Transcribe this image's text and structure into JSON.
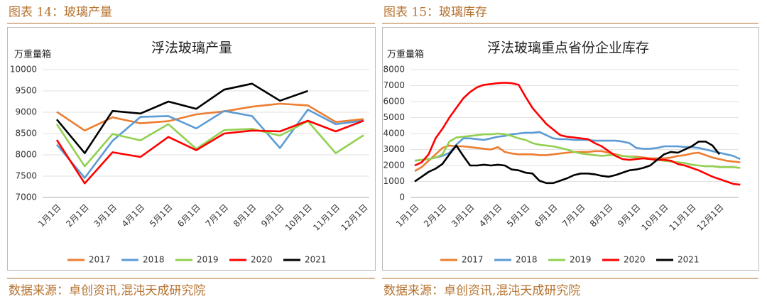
{
  "chart_data": [
    {
      "type": "line",
      "figure_label": "图表 14：玻璃产量",
      "title": "浮法玻璃产量",
      "y_label": "万重量箱",
      "source": "数据来源：卓创资讯,混沌天成研究院",
      "categories": [
        "1月1日",
        "2月1日",
        "3月1日",
        "4月1日",
        "5月1日",
        "6月1日",
        "7月1日",
        "8月1日",
        "9月1日",
        "10月1日",
        "11月1日",
        "12月1日"
      ],
      "series": [
        {
          "name": "2017",
          "color": "#ed7d31",
          "values": [
            9010,
            8570,
            8880,
            8740,
            8790,
            8950,
            9020,
            9130,
            9200,
            9160,
            8770,
            8840
          ]
        },
        {
          "name": "2018",
          "color": "#5b9bd5",
          "values": [
            8240,
            7460,
            8330,
            8890,
            8910,
            8620,
            9030,
            8910,
            8160,
            9060,
            8720,
            8800
          ]
        },
        {
          "name": "2019",
          "color": "#92d050",
          "values": [
            8720,
            7730,
            8490,
            8340,
            8720,
            8140,
            8580,
            8610,
            8450,
            8790,
            8040,
            8460
          ]
        },
        {
          "name": "2020",
          "color": "#ff0000",
          "values": [
            8350,
            7330,
            8060,
            7950,
            8420,
            8110,
            8500,
            8570,
            8550,
            8800,
            8550,
            8800
          ]
        },
        {
          "name": "2021",
          "color": "#000000",
          "values": [
            8830,
            8040,
            9030,
            8970,
            9250,
            9080,
            9530,
            9670,
            9270,
            9500,
            null,
            null
          ]
        }
      ],
      "ylim": [
        7000,
        10000
      ],
      "yticks": [
        7000,
        7500,
        8000,
        8500,
        9000,
        9500,
        10000
      ],
      "grid": true,
      "legend": "bottom"
    },
    {
      "type": "line",
      "figure_label": "图表 15：玻璃库存",
      "title": "浮法玻璃重点省份企业库存",
      "y_label": "万重量箱",
      "source": "数据来源：卓创资讯,混沌天成研究院",
      "categories": [
        "1月1日",
        null,
        null,
        null,
        "2月1日",
        null,
        null,
        null,
        "3月1日",
        null,
        null,
        null,
        "4月1日",
        null,
        null,
        null,
        "5月1日",
        null,
        null,
        null,
        "6月1日",
        null,
        null,
        null,
        "7月1日",
        null,
        null,
        null,
        "8月1日",
        null,
        null,
        null,
        "9月1日",
        null,
        null,
        null,
        "10月1日",
        null,
        null,
        null,
        "11月1日",
        null,
        null,
        null,
        "12月1日",
        null,
        null,
        null
      ],
      "series": [
        {
          "name": "2017",
          "color": "#ed7d31",
          "values": [
            1650,
            1900,
            2300,
            2700,
            3100,
            3250,
            3200,
            3200,
            3150,
            3100,
            3050,
            3000,
            3150,
            2850,
            2750,
            2700,
            2700,
            2700,
            2650,
            2650,
            2700,
            2750,
            2800,
            2850,
            2850,
            2850,
            2900,
            2900,
            2800,
            2700,
            2600,
            2550,
            2550,
            2500,
            2450,
            2450,
            2450,
            2500,
            2600,
            2650,
            2750,
            2800,
            2650,
            2500,
            2400,
            2300,
            2250,
            2200
          ]
        },
        {
          "name": "2018",
          "color": "#5b9bd5",
          "values": [
            2300,
            2350,
            2400,
            2500,
            2600,
            2800,
            3300,
            3700,
            3700,
            3650,
            3600,
            3700,
            3800,
            3850,
            3950,
            4000,
            4050,
            4050,
            4100,
            3900,
            3700,
            3650,
            3650,
            3600,
            3600,
            3600,
            3550,
            3550,
            3550,
            3550,
            3500,
            3400,
            3100,
            3050,
            3050,
            3100,
            3200,
            3200,
            3200,
            3150,
            3150,
            3100,
            3000,
            2900,
            2800,
            2700,
            2600,
            2400
          ]
        },
        {
          "name": "2019",
          "color": "#92d050",
          "values": [
            2300,
            2350,
            2400,
            2500,
            2700,
            3500,
            3750,
            3800,
            3850,
            3900,
            3950,
            3950,
            4000,
            3950,
            3850,
            3700,
            3600,
            3400,
            3300,
            3250,
            3200,
            3100,
            3000,
            2850,
            2750,
            2700,
            2650,
            2600,
            2650,
            2650,
            2600,
            2550,
            2500,
            2450,
            2400,
            2350,
            2300,
            2250,
            2200,
            2150,
            2050,
            2000,
            1950,
            1950,
            1900,
            1900,
            1900,
            1850
          ]
        },
        {
          "name": "2020",
          "color": "#ff0000",
          "values": [
            2000,
            2200,
            2700,
            3700,
            4300,
            5000,
            5600,
            6200,
            6600,
            6900,
            7050,
            7100,
            7150,
            7180,
            7150,
            7050,
            6300,
            5600,
            5100,
            4600,
            4250,
            3900,
            3800,
            3750,
            3700,
            3650,
            3400,
            3200,
            2900,
            2600,
            2400,
            2350,
            2400,
            2450,
            2400,
            2350,
            2350,
            2300,
            2100,
            2000,
            1850,
            1700,
            1500,
            1300,
            1150,
            1000,
            850,
            800
          ]
        },
        {
          "name": "2021",
          "color": "#000000",
          "values": [
            1000,
            1300,
            1600,
            1800,
            2100,
            2700,
            3250,
            2600,
            2000,
            2000,
            2050,
            2000,
            2050,
            2000,
            1750,
            1700,
            1550,
            1500,
            1050,
            900,
            900,
            1050,
            1200,
            1400,
            1500,
            1500,
            1450,
            1350,
            1300,
            1400,
            1550,
            1700,
            1750,
            1850,
            2000,
            2350,
            2700,
            2850,
            2800,
            3000,
            3200,
            3500,
            3500,
            3250,
            2700,
            null,
            null,
            null
          ]
        }
      ],
      "ylim": [
        0,
        8000
      ],
      "yticks": [
        0,
        1000,
        2000,
        3000,
        4000,
        5000,
        6000,
        7000,
        8000
      ],
      "grid": true,
      "legend": "bottom"
    }
  ]
}
